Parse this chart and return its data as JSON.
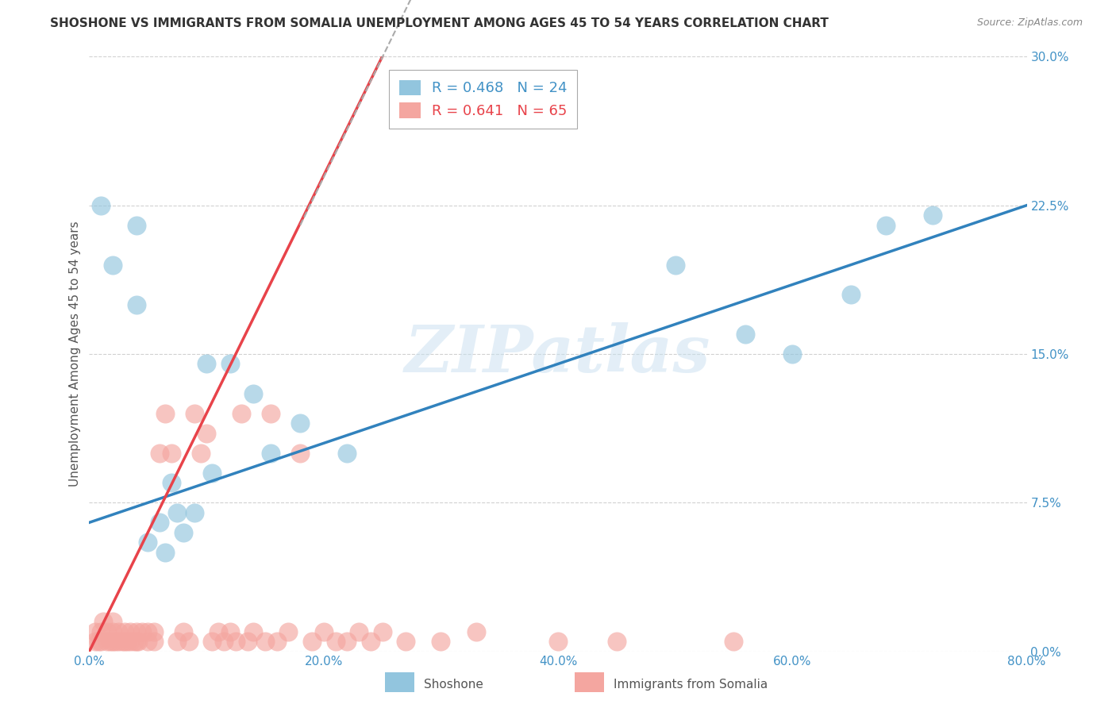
{
  "title": "SHOSHONE VS IMMIGRANTS FROM SOMALIA UNEMPLOYMENT AMONG AGES 45 TO 54 YEARS CORRELATION CHART",
  "source": "Source: ZipAtlas.com",
  "ylabel": "Unemployment Among Ages 45 to 54 years",
  "xlabel": "",
  "xlim": [
    0.0,
    0.8
  ],
  "ylim": [
    0.0,
    0.3
  ],
  "xticks": [
    0.0,
    0.2,
    0.4,
    0.6,
    0.8
  ],
  "xtick_labels": [
    "0.0%",
    "20.0%",
    "40.0%",
    "60.0%",
    "80.0%"
  ],
  "yticks": [
    0.0,
    0.075,
    0.15,
    0.225,
    0.3
  ],
  "ytick_labels": [
    "0.0%",
    "7.5%",
    "15.0%",
    "22.5%",
    "30.0%"
  ],
  "shoshone_color": "#92c5de",
  "somalia_color": "#f4a6a0",
  "shoshone_trendline_color": "#3182bd",
  "somalia_trendline_color": "#e8434a",
  "shoshone_R": 0.468,
  "shoshone_N": 24,
  "somalia_R": 0.641,
  "somalia_N": 65,
  "legend_label_shoshone": "Shoshone",
  "legend_label_somalia": "Immigrants from Somalia",
  "watermark": "ZIPatlas",
  "shoshone_scatter_x": [
    0.01,
    0.02,
    0.04,
    0.04,
    0.05,
    0.06,
    0.065,
    0.07,
    0.075,
    0.08,
    0.09,
    0.1,
    0.105,
    0.12,
    0.14,
    0.155,
    0.18,
    0.22,
    0.5,
    0.56,
    0.6,
    0.65,
    0.68,
    0.72
  ],
  "shoshone_scatter_y": [
    0.225,
    0.195,
    0.215,
    0.175,
    0.055,
    0.065,
    0.05,
    0.085,
    0.07,
    0.06,
    0.07,
    0.145,
    0.09,
    0.145,
    0.13,
    0.1,
    0.115,
    0.1,
    0.195,
    0.16,
    0.15,
    0.18,
    0.215,
    0.22
  ],
  "somalia_scatter_x": [
    0.005,
    0.005,
    0.008,
    0.01,
    0.01,
    0.012,
    0.015,
    0.015,
    0.018,
    0.02,
    0.02,
    0.02,
    0.022,
    0.025,
    0.025,
    0.028,
    0.03,
    0.03,
    0.032,
    0.035,
    0.035,
    0.038,
    0.04,
    0.04,
    0.042,
    0.045,
    0.05,
    0.05,
    0.055,
    0.055,
    0.06,
    0.065,
    0.07,
    0.075,
    0.08,
    0.085,
    0.09,
    0.095,
    0.1,
    0.105,
    0.11,
    0.115,
    0.12,
    0.125,
    0.13,
    0.135,
    0.14,
    0.15,
    0.155,
    0.16,
    0.17,
    0.18,
    0.19,
    0.2,
    0.21,
    0.22,
    0.23,
    0.24,
    0.25,
    0.27,
    0.3,
    0.33,
    0.4,
    0.45,
    0.55
  ],
  "somalia_scatter_y": [
    0.005,
    0.01,
    0.005,
    0.01,
    0.005,
    0.015,
    0.005,
    0.01,
    0.005,
    0.005,
    0.01,
    0.015,
    0.005,
    0.005,
    0.01,
    0.005,
    0.01,
    0.005,
    0.005,
    0.005,
    0.01,
    0.005,
    0.005,
    0.01,
    0.005,
    0.01,
    0.005,
    0.01,
    0.005,
    0.01,
    0.1,
    0.12,
    0.1,
    0.005,
    0.01,
    0.005,
    0.12,
    0.1,
    0.11,
    0.005,
    0.01,
    0.005,
    0.01,
    0.005,
    0.12,
    0.005,
    0.01,
    0.005,
    0.12,
    0.005,
    0.01,
    0.1,
    0.005,
    0.01,
    0.005,
    0.005,
    0.01,
    0.005,
    0.01,
    0.005,
    0.005,
    0.01,
    0.005,
    0.005,
    0.005
  ],
  "shoshone_trend_x": [
    0.0,
    0.8
  ],
  "shoshone_trend_y": [
    0.065,
    0.225
  ],
  "somalia_trend_x": [
    0.0,
    0.25
  ],
  "somalia_trend_y": [
    0.0,
    0.3
  ],
  "title_fontsize": 11,
  "axis_label_fontsize": 11,
  "tick_fontsize": 11,
  "legend_fontsize": 13
}
